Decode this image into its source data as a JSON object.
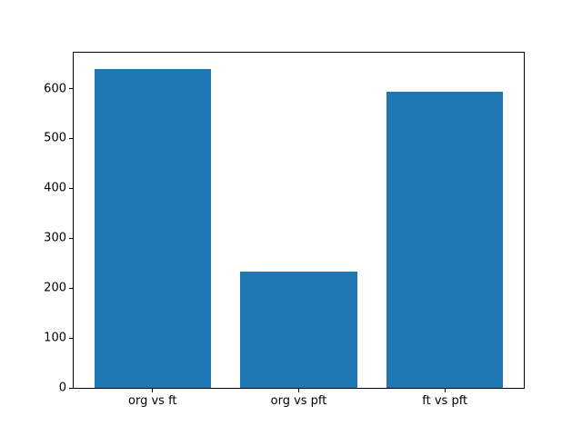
{
  "figure": {
    "background": "#ffffff",
    "bar_color": "#1f77b4",
    "spine_color": "#000000",
    "text_color": "#000000"
  },
  "chart_data": {
    "type": "bar",
    "title": "",
    "xlabel": "",
    "ylabel": "",
    "categories": [
      "org vs ft",
      "org vs pft",
      "ft vs pft"
    ],
    "values": [
      640,
      233,
      593
    ],
    "yticks": [
      0,
      100,
      200,
      300,
      400,
      500,
      600
    ],
    "ylim": [
      0,
      672
    ],
    "xlim": [
      -0.54,
      2.54
    ],
    "bar_width": 0.8,
    "grid": false,
    "legend": null
  }
}
